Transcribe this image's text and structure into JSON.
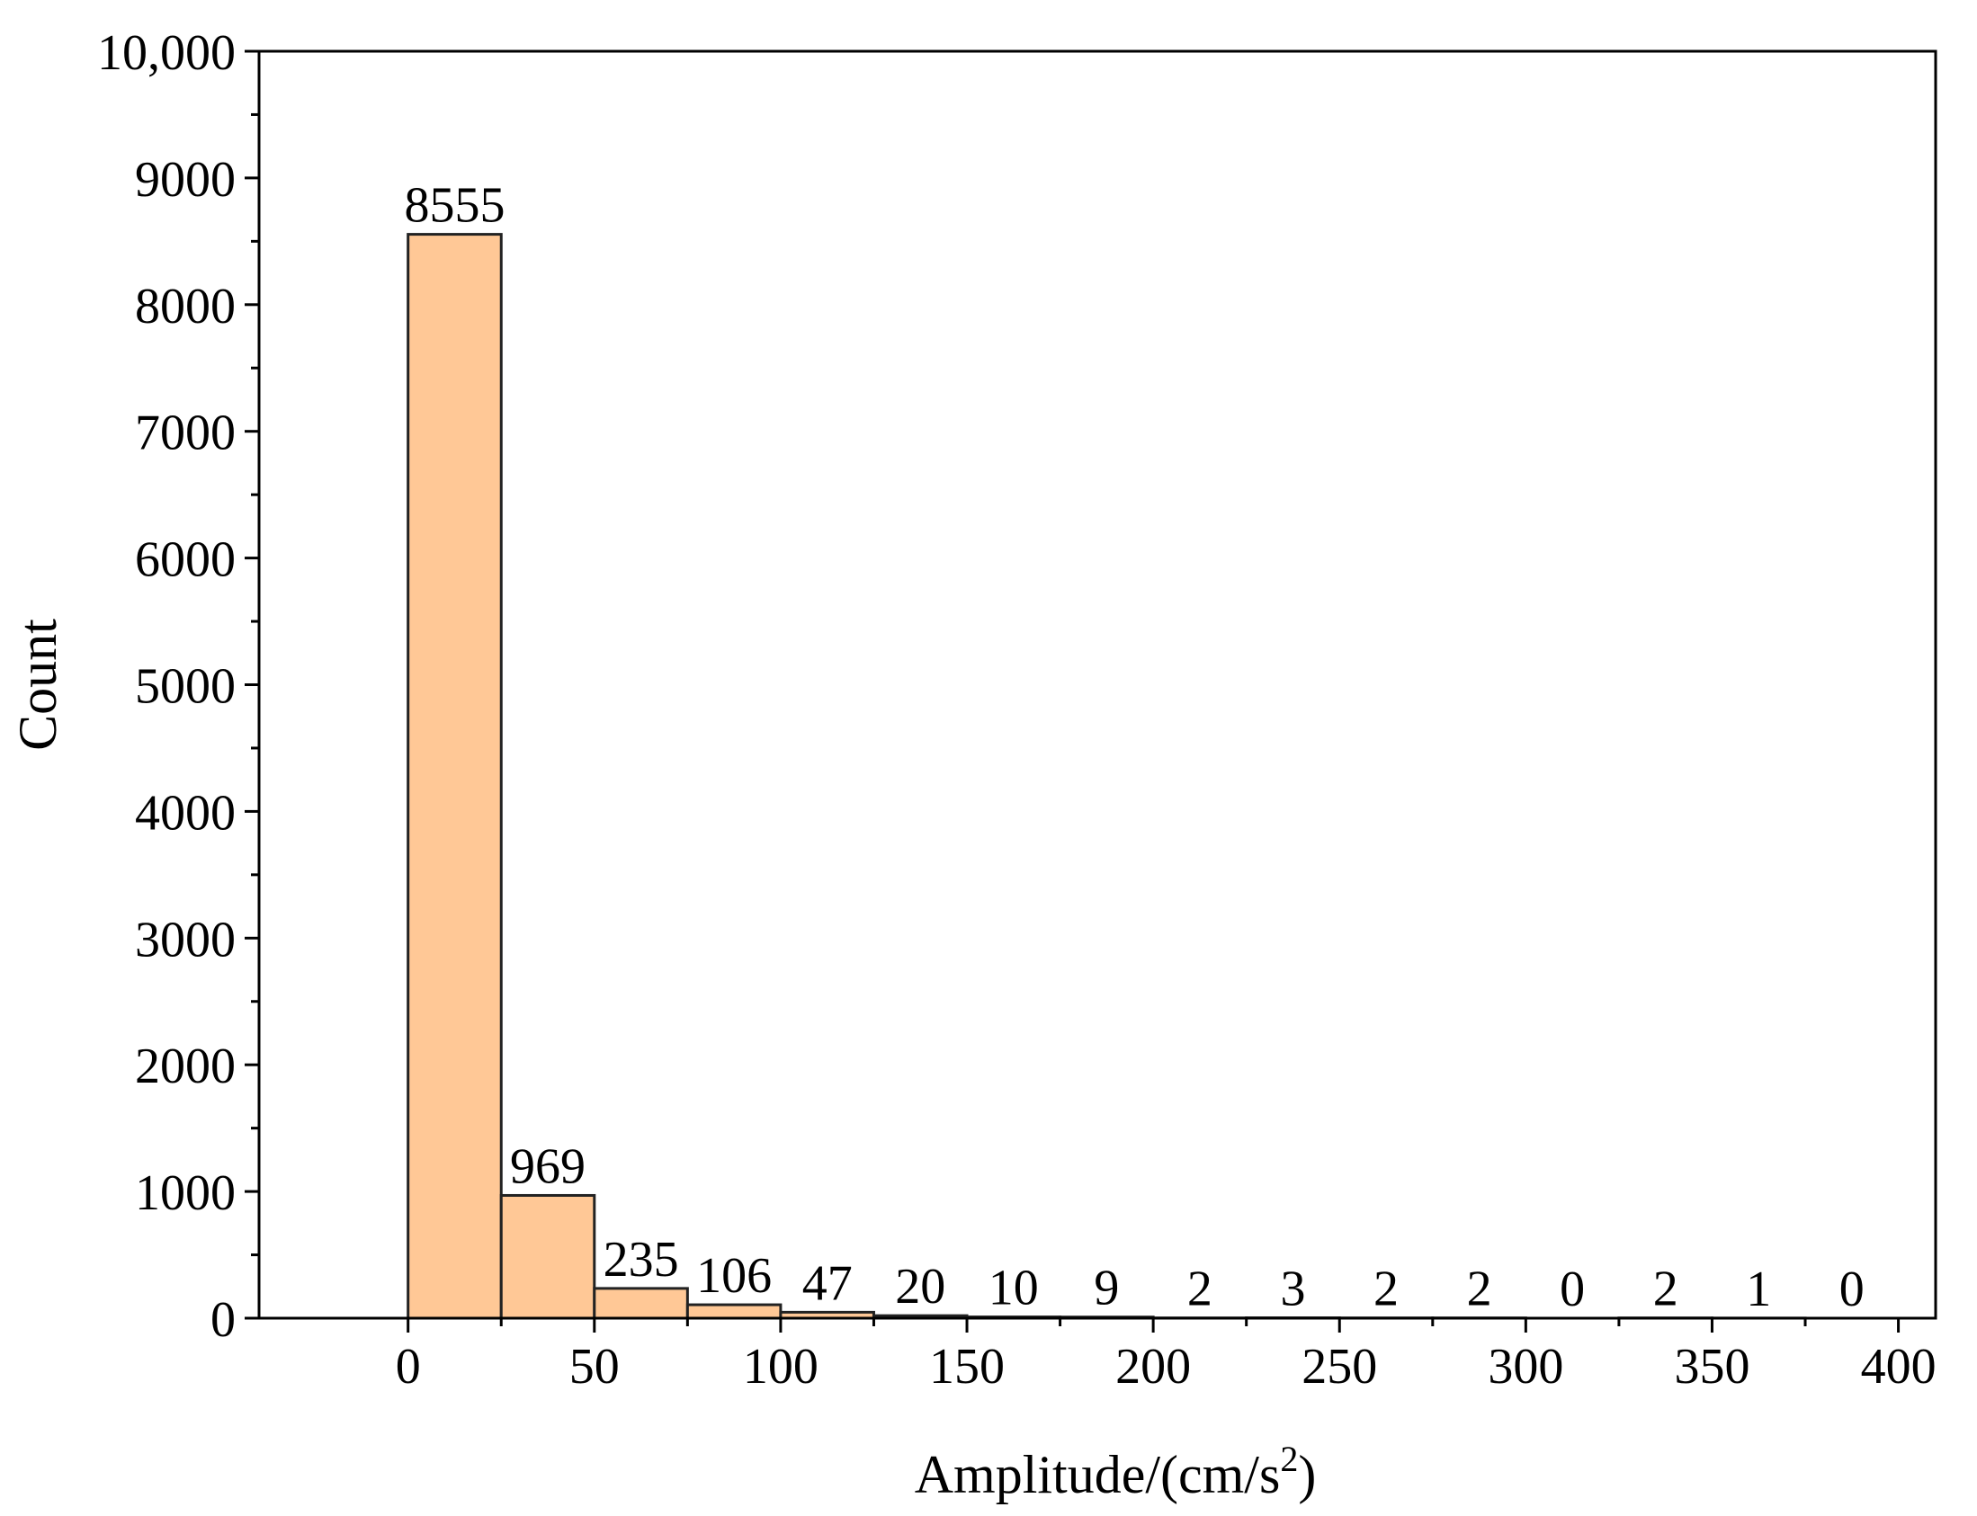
{
  "chart_data": {
    "type": "bar",
    "bin_edges": [
      0,
      25,
      50,
      75,
      100,
      125,
      150,
      175,
      200,
      225,
      250,
      275,
      300,
      325,
      350,
      375,
      400
    ],
    "values": [
      8555,
      969,
      235,
      106,
      47,
      20,
      10,
      9,
      2,
      3,
      2,
      2,
      0,
      2,
      1,
      0
    ],
    "xlabel": "Amplitude/(cm/s",
    "xlabel_superscript": "2",
    "xlabel_suffix": ")",
    "ylabel": "Count",
    "xlim": [
      -40,
      410
    ],
    "ylim": [
      0,
      10000
    ],
    "x_ticks": [
      0,
      50,
      100,
      150,
      200,
      250,
      300,
      350,
      400
    ],
    "x_tick_labels": [
      "0",
      "50",
      "100",
      "150",
      "200",
      "250",
      "300",
      "350",
      "400"
    ],
    "y_ticks": [
      0,
      1000,
      2000,
      3000,
      4000,
      5000,
      6000,
      7000,
      8000,
      9000,
      10000
    ],
    "y_tick_labels": [
      "0",
      "1000",
      "2000",
      "3000",
      "4000",
      "5000",
      "6000",
      "7000",
      "8000",
      "9000",
      "10,000"
    ],
    "grid": false,
    "bar_color": "#FFC896",
    "bar_edge_color": "#222222"
  }
}
